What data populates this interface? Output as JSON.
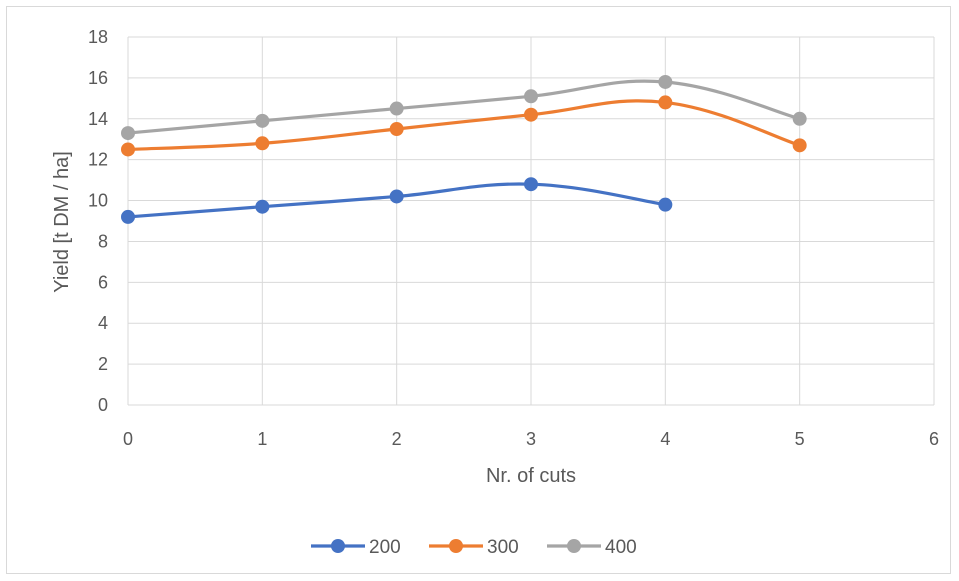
{
  "chart_data": {
    "type": "scatter",
    "title": "",
    "xlabel": "Nr. of cuts",
    "ylabel": "Yield [t DM / ha]",
    "xlim": [
      0,
      6
    ],
    "ylim": [
      0,
      18
    ],
    "xticks": [
      0,
      1,
      2,
      3,
      4,
      5,
      6
    ],
    "yticks": [
      0,
      2,
      4,
      6,
      8,
      10,
      12,
      14,
      16,
      18
    ],
    "grid": true,
    "smooth_lines": true,
    "legend_position": "bottom",
    "series": [
      {
        "name": "200",
        "color": "#4472c4",
        "x": [
          0,
          1,
          2,
          3,
          4
        ],
        "y": [
          9.2,
          9.7,
          10.2,
          10.8,
          9.8
        ]
      },
      {
        "name": "300",
        "color": "#ed7d31",
        "x": [
          0,
          1,
          2,
          3,
          4,
          5
        ],
        "y": [
          12.5,
          12.8,
          13.5,
          14.2,
          14.8,
          12.7
        ]
      },
      {
        "name": "400",
        "color": "#a5a5a5",
        "x": [
          0,
          1,
          2,
          3,
          4,
          5
        ],
        "y": [
          13.3,
          13.9,
          14.5,
          15.1,
          15.8,
          14.0
        ]
      }
    ]
  }
}
